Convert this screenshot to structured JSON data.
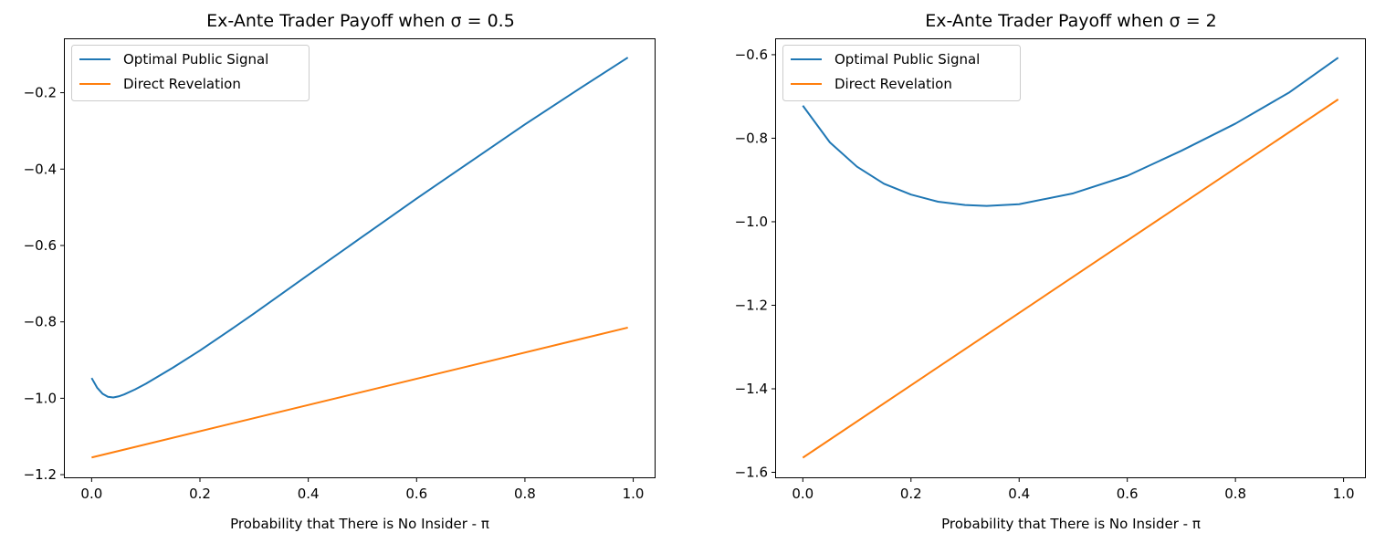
{
  "chart_data": [
    {
      "type": "line",
      "title": "Ex-Ante Trader Payoff when σ = 0.5",
      "xlabel": "Probability that There is No Insider - π",
      "ylabel": "",
      "xlim": [
        -0.0495,
        1.0395
      ],
      "ylim": [
        -1.207,
        -0.06
      ],
      "xticks": [
        0.0,
        0.2,
        0.4,
        0.6,
        0.8,
        1.0
      ],
      "xtick_labels": [
        "0.0",
        "0.2",
        "0.4",
        "0.6",
        "0.8",
        "1.0"
      ],
      "yticks": [
        -1.2,
        -1.0,
        -0.8,
        -0.6,
        -0.4,
        -0.2
      ],
      "ytick_labels": [
        "−1.2",
        "−1.0",
        "−0.8",
        "−0.6",
        "−0.4",
        "−0.2"
      ],
      "grid": false,
      "legend_position": "top-left",
      "series": [
        {
          "name": "Optimal Public Signal",
          "color": "#1f77b4",
          "x": [
            0.0,
            0.01,
            0.02,
            0.03,
            0.04,
            0.05,
            0.06,
            0.08,
            0.1,
            0.15,
            0.2,
            0.25,
            0.3,
            0.4,
            0.5,
            0.6,
            0.7,
            0.8,
            0.9,
            0.99
          ],
          "y": [
            -0.947,
            -0.972,
            -0.988,
            -0.996,
            -0.998,
            -0.995,
            -0.99,
            -0.977,
            -0.962,
            -0.92,
            -0.875,
            -0.827,
            -0.778,
            -0.677,
            -0.577,
            -0.477,
            -0.38,
            -0.283,
            -0.19,
            -0.108
          ]
        },
        {
          "name": "Direct Revelation",
          "color": "#ff7f0e",
          "x": [
            0.0,
            0.99
          ],
          "y": [
            -1.155,
            -0.815
          ]
        }
      ]
    },
    {
      "type": "line",
      "title": "Ex-Ante Trader Payoff when σ = 2",
      "xlabel": "Probability that There is No Insider - π",
      "ylabel": "",
      "xlim": [
        -0.0495,
        1.0395
      ],
      "ylim": [
        -1.612,
        -0.563
      ],
      "xticks": [
        0.0,
        0.2,
        0.4,
        0.6,
        0.8,
        1.0
      ],
      "xtick_labels": [
        "0.0",
        "0.2",
        "0.4",
        "0.6",
        "0.8",
        "1.0"
      ],
      "yticks": [
        -1.6,
        -1.4,
        -1.2,
        -1.0,
        -0.8,
        -0.6
      ],
      "ytick_labels": [
        "−1.6",
        "−1.4",
        "−1.2",
        "−1.0",
        "−0.8",
        "−0.6"
      ],
      "grid": false,
      "legend_position": "top-left",
      "series": [
        {
          "name": "Optimal Public Signal",
          "color": "#1f77b4",
          "x": [
            0.0,
            0.05,
            0.1,
            0.15,
            0.2,
            0.25,
            0.3,
            0.34,
            0.4,
            0.5,
            0.6,
            0.7,
            0.8,
            0.9,
            0.99
          ],
          "y": [
            -0.722,
            -0.81,
            -0.868,
            -0.909,
            -0.935,
            -0.952,
            -0.96,
            -0.962,
            -0.958,
            -0.932,
            -0.89,
            -0.83,
            -0.765,
            -0.69,
            -0.607
          ]
        },
        {
          "name": "Direct Revelation",
          "color": "#ff7f0e",
          "x": [
            0.0,
            0.99
          ],
          "y": [
            -1.565,
            -0.707
          ]
        }
      ]
    }
  ]
}
